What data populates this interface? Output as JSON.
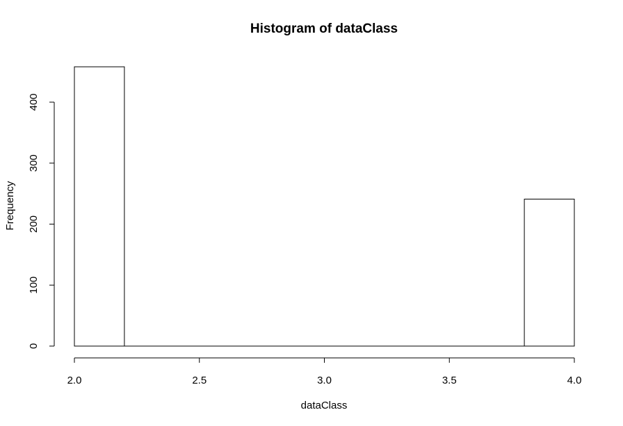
{
  "chart_data": {
    "type": "bar",
    "title": "Histogram of dataClass",
    "xlabel": "dataClass",
    "ylabel": "Frequency",
    "xlim": [
      2.0,
      4.0
    ],
    "ylim": [
      0,
      460
    ],
    "x_ticks": [
      2.0,
      2.5,
      3.0,
      3.5,
      4.0
    ],
    "x_tick_labels": [
      "2.0",
      "2.5",
      "3.0",
      "3.5",
      "4.0"
    ],
    "y_ticks": [
      0,
      100,
      200,
      300,
      400
    ],
    "y_tick_labels": [
      "0",
      "100",
      "200",
      "300",
      "400"
    ],
    "bin_width": 0.2,
    "bins": [
      {
        "start": 2.0,
        "end": 2.2,
        "count": 458
      },
      {
        "start": 2.2,
        "end": 2.4,
        "count": 0
      },
      {
        "start": 2.4,
        "end": 2.6,
        "count": 0
      },
      {
        "start": 2.6,
        "end": 2.8,
        "count": 0
      },
      {
        "start": 2.8,
        "end": 3.0,
        "count": 0
      },
      {
        "start": 3.0,
        "end": 3.2,
        "count": 0
      },
      {
        "start": 3.2,
        "end": 3.4,
        "count": 0
      },
      {
        "start": 3.4,
        "end": 3.6,
        "count": 0
      },
      {
        "start": 3.6,
        "end": 3.8,
        "count": 0
      },
      {
        "start": 3.8,
        "end": 4.0,
        "count": 241
      }
    ],
    "grid": false,
    "bar_fill": "#ffffff",
    "bar_stroke": "#000000"
  }
}
